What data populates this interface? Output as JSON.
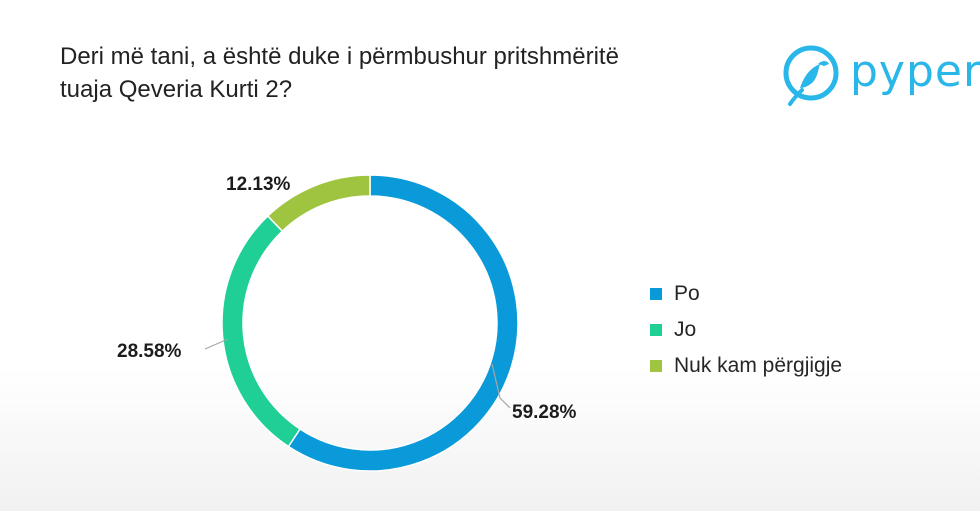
{
  "title": {
    "line1": "Deri më tani, a është duke i përmbushur pritshmëritë",
    "line2": "tuaja Qeveria Kurti 2?"
  },
  "logo": {
    "text": "pyper",
    "icon": "bird-icon",
    "color": "#29b6e8"
  },
  "chart_data": {
    "type": "pie",
    "donut": true,
    "title": "Deri më tani, a është duke i përmbushur pritshmëritë tuaja Qeveria Kurti 2?",
    "categories": [
      "Po",
      "Jo",
      "Nuk kam përgjigje"
    ],
    "values": [
      59.28,
      28.58,
      12.13
    ],
    "labels": [
      "59.28%",
      "28.58%",
      "12.13%"
    ],
    "colors": [
      "#0a9ad9",
      "#1fcf96",
      "#9fc43f"
    ],
    "legend": "right"
  }
}
